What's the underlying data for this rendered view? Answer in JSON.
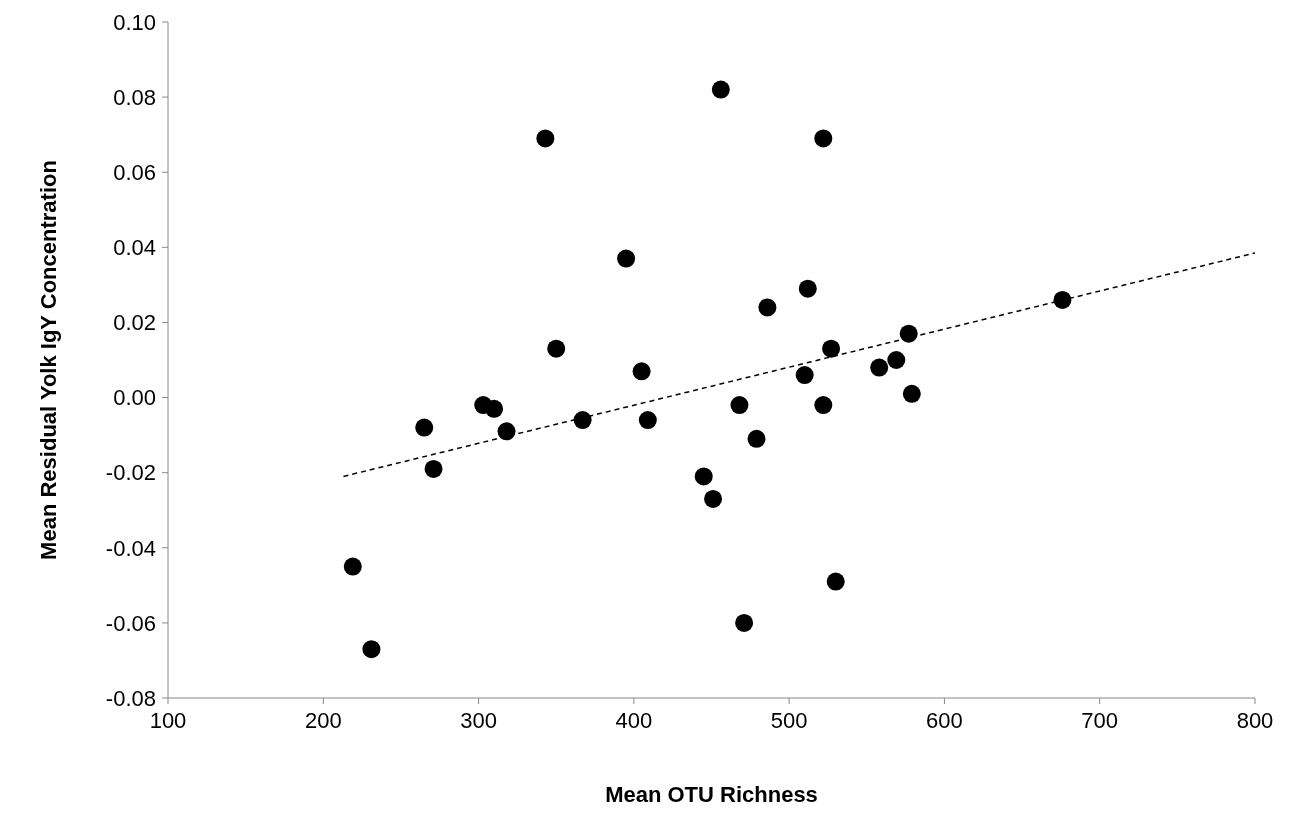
{
  "chart_data": {
    "type": "scatter",
    "xlabel": "Mean OTU Richness",
    "ylabel": "Mean Residual Yolk IgY Concentration",
    "xlim": [
      100,
      800
    ],
    "xticks": [
      100,
      200,
      300,
      400,
      500,
      600,
      700,
      800
    ],
    "ylim": [
      -0.08,
      0.1
    ],
    "yticks": [
      {
        "value": -0.08,
        "label": "-0.08"
      },
      {
        "value": -0.06,
        "label": "-0.06"
      },
      {
        "value": -0.04,
        "label": "-0.04"
      },
      {
        "value": -0.02,
        "label": "-0.02"
      },
      {
        "value": 0,
        "label": "0.00"
      },
      {
        "value": 0.02,
        "label": "0.02"
      },
      {
        "value": 0.04,
        "label": "0.04"
      },
      {
        "value": 0.06,
        "label": "0.06"
      },
      {
        "value": 0.08,
        "label": "0.08"
      },
      {
        "value": 0.1,
        "label": "0.10"
      }
    ],
    "grid": false,
    "legend": false,
    "series": [
      {
        "type": "scatter",
        "color": "#000000",
        "marker": "circle",
        "x": [
          219,
          231,
          265,
          271,
          303,
          310,
          318,
          343,
          350,
          367,
          395,
          405,
          409,
          445,
          451,
          456,
          468,
          471,
          479,
          486,
          512,
          510,
          522,
          522,
          527,
          530,
          558,
          569,
          577,
          579,
          676
        ],
        "values": [
          -0.045,
          -0.067,
          -0.008,
          -0.019,
          -0.002,
          -0.003,
          -0.009,
          0.069,
          0.013,
          -0.006,
          0.037,
          0.007,
          -0.006,
          -0.021,
          -0.027,
          0.082,
          -0.002,
          -0.06,
          -0.011,
          0.024,
          0.029,
          0.006,
          0.069,
          -0.002,
          0.013,
          -0.049,
          0.008,
          0.01,
          0.017,
          0.001,
          0.026
        ]
      },
      {
        "type": "line",
        "color": "#000000",
        "marker": "none",
        "line_style": "dashed",
        "x": [
          213,
          800
        ],
        "values": [
          -0.021,
          0.0385
        ]
      }
    ]
  }
}
